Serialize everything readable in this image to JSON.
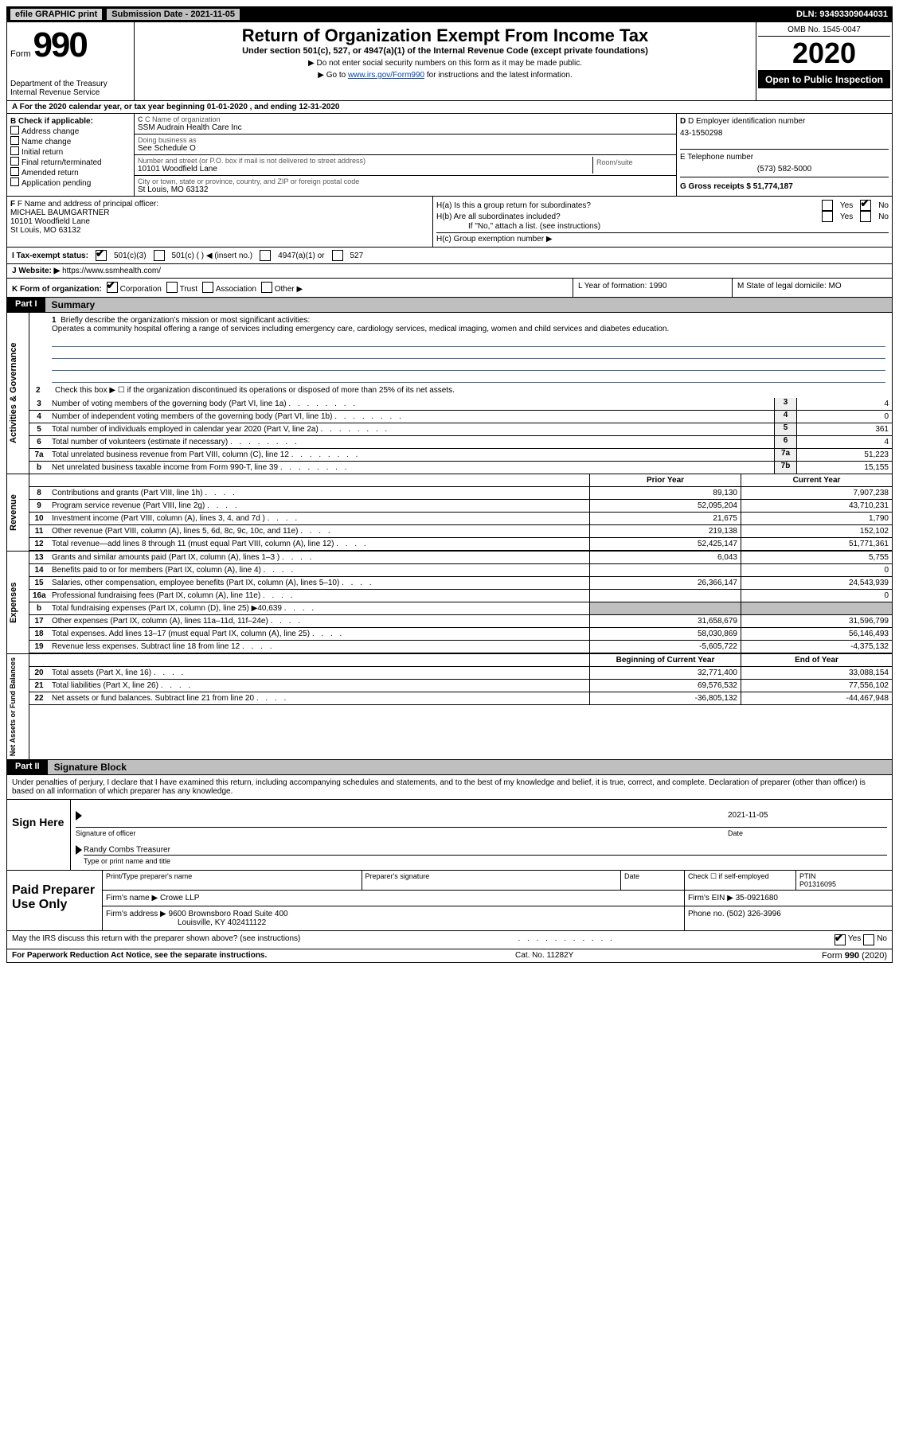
{
  "topbar": {
    "efile": "efile GRAPHIC print",
    "submission_label": "Submission Date - 2021-11-05",
    "dln": "DLN: 93493309044031"
  },
  "header": {
    "form_word": "Form",
    "form_num": "990",
    "title": "Return of Organization Exempt From Income Tax",
    "subtitle": "Under section 501(c), 527, or 4947(a)(1) of the Internal Revenue Code (except private foundations)",
    "note1": "Do not enter social security numbers on this form as it may be made public.",
    "note2_pre": "Go to ",
    "note2_link": "www.irs.gov/Form990",
    "note2_post": " for instructions and the latest information.",
    "dept1": "Department of the Treasury",
    "dept2": "Internal Revenue Service",
    "omb": "OMB No. 1545-0047",
    "year": "2020",
    "open": "Open to Public Inspection"
  },
  "rowA": "A For the 2020 calendar year, or tax year beginning 01-01-2020   , and ending 12-31-2020",
  "boxB": {
    "label": "B Check if applicable:",
    "opts": [
      "Address change",
      "Name change",
      "Initial return",
      "Final return/terminated",
      "Amended return",
      "Application pending"
    ]
  },
  "boxC": {
    "c_label": "C Name of organization",
    "c_name": "SSM Audrain Health Care Inc",
    "dba_label": "Doing business as",
    "dba": "See Schedule O",
    "addr_label": "Number and street (or P.O. box if mail is not delivered to street address)",
    "room_label": "Room/suite",
    "addr": "10101 Woodfield Lane",
    "city_label": "City or town, state or province, country, and ZIP or foreign postal code",
    "city": "St Louis, MO  63132"
  },
  "boxD": {
    "label": "D Employer identification number",
    "ein": "43-1550298",
    "tel_label": "E Telephone number",
    "tel": "(573) 582-5000",
    "g_label": "G Gross receipts $ 51,774,187"
  },
  "boxF": {
    "label": "F Name and address of principal officer:",
    "name": "MICHAEL BAUMGARTNER",
    "addr1": "10101 Woodfield Lane",
    "addr2": "St Louis, MO  63132"
  },
  "boxH": {
    "ha": "H(a)  Is this a group return for subordinates?",
    "hb": "H(b)  Are all subordinates included?",
    "hb_note": "If \"No,\" attach a list. (see instructions)",
    "hc": "H(c)  Group exemption number ▶",
    "yes": "Yes",
    "no": "No"
  },
  "rowI": {
    "label": "I    Tax-exempt status:",
    "o1": "501(c)(3)",
    "o2": "501(c) (   ) ◀ (insert no.)",
    "o3": "4947(a)(1) or",
    "o4": "527"
  },
  "rowJ": {
    "label": "J   Website: ▶",
    "url": "https://www.ssmhealth.com/"
  },
  "rowK": {
    "label": "K Form of organization:",
    "opts": [
      "Corporation",
      "Trust",
      "Association",
      "Other ▶"
    ],
    "l": "L Year of formation: 1990",
    "m": "M State of legal domicile: MO"
  },
  "parts": {
    "p1_tab": "Part I",
    "p1_title": "Summary",
    "p2_tab": "Part II",
    "p2_title": "Signature Block"
  },
  "brief": {
    "label": "Briefly describe the organization's mission or most significant activities:",
    "text": "Operates a community hospital offering a range of services including emergency care, cardiology services, medical imaging, women and child services and diabetes education."
  },
  "line2": "Check this box ▶ ☐  if the organization discontinued its operations or disposed of more than 25% of its net assets.",
  "gov_lines": [
    {
      "n": "3",
      "t": "Number of voting members of the governing body (Part VI, line 1a)",
      "box": "3",
      "v": "4"
    },
    {
      "n": "4",
      "t": "Number of independent voting members of the governing body (Part VI, line 1b)",
      "box": "4",
      "v": "0"
    },
    {
      "n": "5",
      "t": "Total number of individuals employed in calendar year 2020 (Part V, line 2a)",
      "box": "5",
      "v": "361"
    },
    {
      "n": "6",
      "t": "Total number of volunteers (estimate if necessary)",
      "box": "6",
      "v": "4"
    },
    {
      "n": "7a",
      "t": "Total unrelated business revenue from Part VIII, column (C), line 12",
      "box": "7a",
      "v": "51,223"
    },
    {
      "n": "b",
      "t": "Net unrelated business taxable income from Form 990-T, line 39",
      "box": "7b",
      "v": "15,155"
    }
  ],
  "col_headers": {
    "prior": "Prior Year",
    "current": "Current Year",
    "boy": "Beginning of Current Year",
    "eoy": "End of Year"
  },
  "revenue": [
    {
      "n": "8",
      "t": "Contributions and grants (Part VIII, line 1h)",
      "p": "89,130",
      "c": "7,907,238"
    },
    {
      "n": "9",
      "t": "Program service revenue (Part VIII, line 2g)",
      "p": "52,095,204",
      "c": "43,710,231"
    },
    {
      "n": "10",
      "t": "Investment income (Part VIII, column (A), lines 3, 4, and 7d )",
      "p": "21,675",
      "c": "1,790"
    },
    {
      "n": "11",
      "t": "Other revenue (Part VIII, column (A), lines 5, 6d, 8c, 9c, 10c, and 11e)",
      "p": "219,138",
      "c": "152,102"
    },
    {
      "n": "12",
      "t": "Total revenue—add lines 8 through 11 (must equal Part VIII, column (A), line 12)",
      "p": "52,425,147",
      "c": "51,771,361"
    }
  ],
  "expenses": [
    {
      "n": "13",
      "t": "Grants and similar amounts paid (Part IX, column (A), lines 1–3 )",
      "p": "6,043",
      "c": "5,755"
    },
    {
      "n": "14",
      "t": "Benefits paid to or for members (Part IX, column (A), line 4)",
      "p": "",
      "c": "0"
    },
    {
      "n": "15",
      "t": "Salaries, other compensation, employee benefits (Part IX, column (A), lines 5–10)",
      "p": "26,366,147",
      "c": "24,543,939"
    },
    {
      "n": "16a",
      "t": "Professional fundraising fees (Part IX, column (A), line 11e)",
      "p": "",
      "c": "0"
    },
    {
      "n": "b",
      "t": "Total fundraising expenses (Part IX, column (D), line 25) ▶40,639",
      "p": "GRAY",
      "c": "GRAY"
    },
    {
      "n": "17",
      "t": "Other expenses (Part IX, column (A), lines 11a–11d, 11f–24e)",
      "p": "31,658,679",
      "c": "31,596,799"
    },
    {
      "n": "18",
      "t": "Total expenses. Add lines 13–17 (must equal Part IX, column (A), line 25)",
      "p": "58,030,869",
      "c": "56,146,493"
    },
    {
      "n": "19",
      "t": "Revenue less expenses. Subtract line 18 from line 12",
      "p": "-5,605,722",
      "c": "-4,375,132"
    }
  ],
  "netassets": [
    {
      "n": "20",
      "t": "Total assets (Part X, line 16)",
      "p": "32,771,400",
      "c": "33,088,154"
    },
    {
      "n": "21",
      "t": "Total liabilities (Part X, line 26)",
      "p": "69,576,532",
      "c": "77,556,102"
    },
    {
      "n": "22",
      "t": "Net assets or fund balances. Subtract line 21 from line 20",
      "p": "-36,805,132",
      "c": "-44,467,948"
    }
  ],
  "vert": {
    "gov": "Activities & Governance",
    "rev": "Revenue",
    "exp": "Expenses",
    "net": "Net Assets or Fund Balances"
  },
  "sig": {
    "decl": "Under penalties of perjury, I declare that I have examined this return, including accompanying schedules and statements, and to the best of my knowledge and belief, it is true, correct, and complete. Declaration of preparer (other than officer) is based on all information of which preparer has any knowledge.",
    "sign_here": "Sign Here",
    "sig_label": "Signature of officer",
    "date_label": "Date",
    "date_val": "2021-11-05",
    "name": "Randy Combs Treasurer",
    "name_label": "Type or print name and title"
  },
  "paid": {
    "title": "Paid Preparer Use Only",
    "col1": "Print/Type preparer's name",
    "col2": "Preparer's signature",
    "col3": "Date",
    "col4a": "Check ☐ if self-employed",
    "col5a": "PTIN",
    "col5b": "P01316095",
    "firm_label": "Firm's name   ▶",
    "firm": "Crowe LLP",
    "ein_label": "Firm's EIN ▶",
    "ein": "35-0921680",
    "addr_label": "Firm's address ▶",
    "addr1": "9600 Brownsboro Road Suite 400",
    "addr2": "Louisville, KY  402411122",
    "phone_label": "Phone no.",
    "phone": "(502) 326-3996"
  },
  "irs_discuss": "May the IRS discuss this return with the preparer shown above? (see instructions)",
  "footer": {
    "left": "For Paperwork Reduction Act Notice, see the separate instructions.",
    "mid": "Cat. No. 11282Y",
    "right_a": "Form ",
    "right_b": "990",
    "right_c": " (2020)"
  }
}
